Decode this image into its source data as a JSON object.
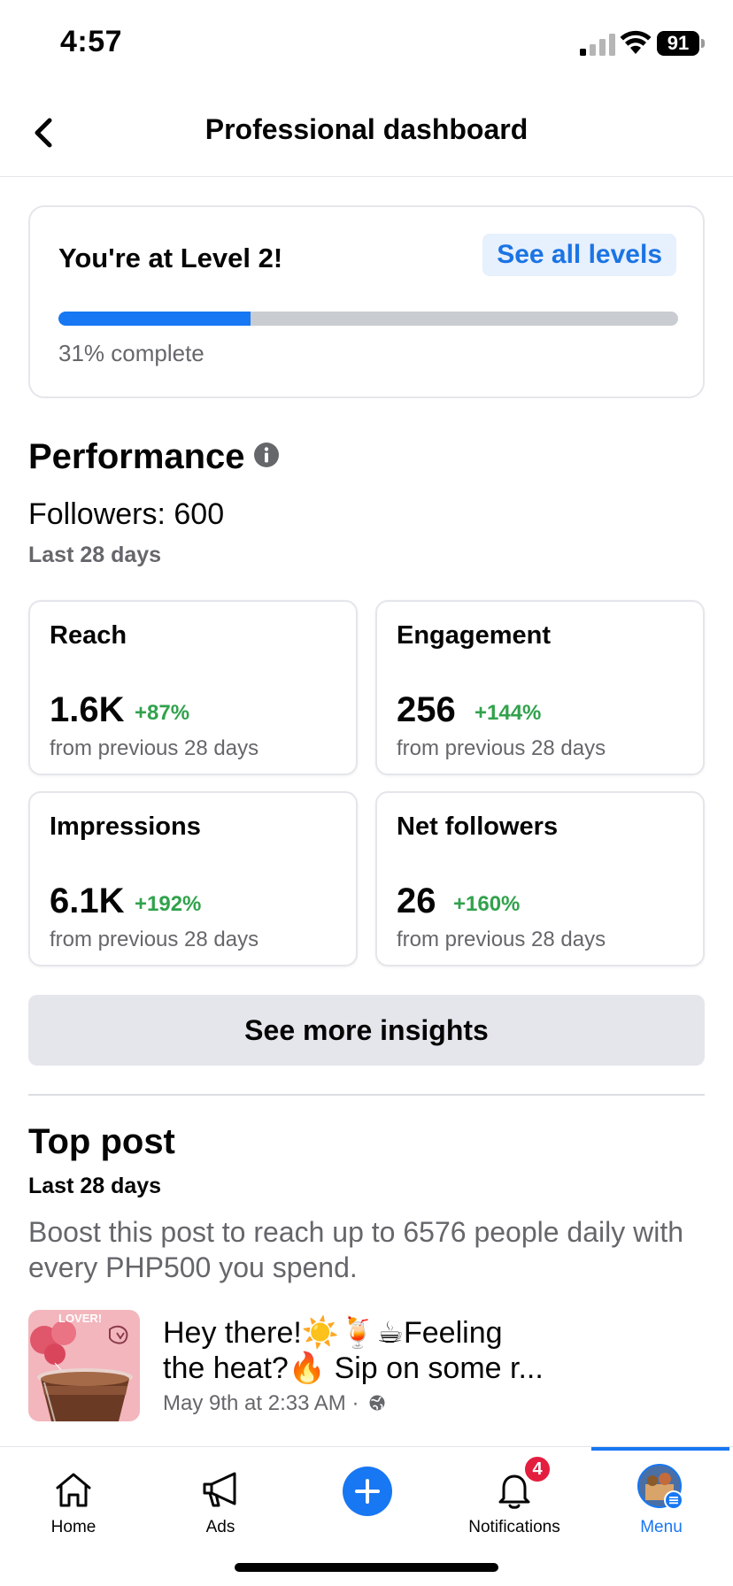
{
  "status_bar": {
    "time": "4:57",
    "battery": "91"
  },
  "header": {
    "title": "Professional dashboard"
  },
  "level_card": {
    "title": "You're at Level 2!",
    "see_all_label": "See all levels",
    "progress_fraction": 0.31,
    "progress_text": "31% complete"
  },
  "performance": {
    "title": "Performance",
    "followers_text": "Followers: 600",
    "period": "Last 28 days",
    "stats": [
      {
        "label": "Reach",
        "value": "1.6K",
        "change": "+87%",
        "sub": "from previous 28 days"
      },
      {
        "label": "Engagement",
        "value": "256",
        "change": "+144%",
        "sub": "from previous 28 days"
      },
      {
        "label": "Impressions",
        "value": "6.1K",
        "change": "+192%",
        "sub": "from previous 28 days"
      },
      {
        "label": "Net followers",
        "value": "26",
        "change": "+160%",
        "sub": "from previous 28 days"
      }
    ],
    "see_more_label": "See more insights"
  },
  "top_post": {
    "title": "Top post",
    "period": "Last 28 days",
    "boost_text": "Boost this post to reach up to 6576 people daily with every PHP500 you spend.",
    "post_text": "Hey there!☀️🍹☕Feeling the heat?🔥 Sip on some r...",
    "post_meta": "May 9th at 2:33 AM ·",
    "thumb_text": "LOVER!"
  },
  "bottom_nav": {
    "items": [
      {
        "label": "Home",
        "icon": "home-icon"
      },
      {
        "label": "Ads",
        "icon": "megaphone-icon"
      },
      {
        "label": "",
        "icon": "create-plus-icon"
      },
      {
        "label": "Notifications",
        "icon": "bell-icon",
        "badge": "4"
      },
      {
        "label": "Menu",
        "icon": "menu-avatar-icon"
      }
    ],
    "active_color": "#1877f2"
  },
  "colors": {
    "accent": "#1877f2",
    "positive": "#31a24c",
    "secondary_text": "#65676b",
    "badge": "#e41e3f"
  }
}
